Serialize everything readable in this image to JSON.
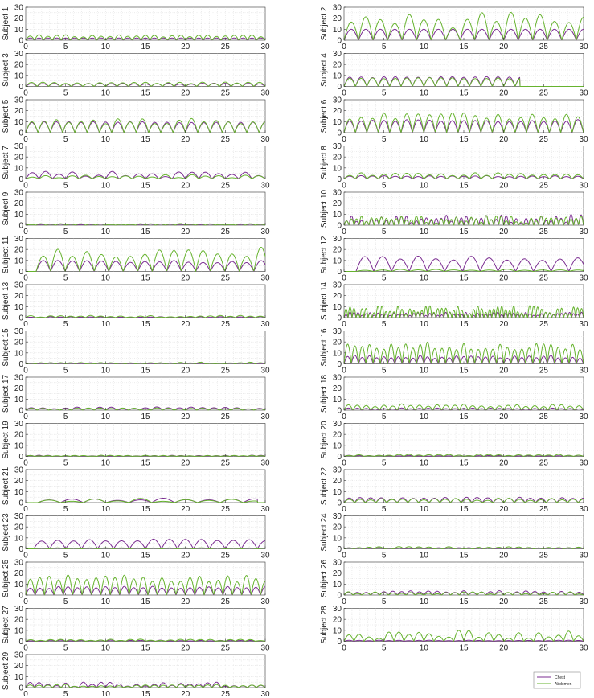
{
  "colors": {
    "chest": "#7b2d91",
    "abdomen": "#66b32e",
    "grid": "#cfcfcf",
    "axis": "#333333"
  },
  "legend": {
    "entries": [
      "Chest",
      "Abdomen"
    ],
    "placement": "bottom-right"
  },
  "chart_data": [
    {
      "type": "line",
      "ylabel": "Subject 1",
      "xlim": [
        0,
        30
      ],
      "ylim": [
        0,
        30
      ],
      "xticks": [
        0,
        5,
        10,
        15,
        20,
        25,
        30
      ],
      "yticks": [
        0,
        10,
        20,
        30
      ],
      "grid": true,
      "series": [
        {
          "name": "Chest",
          "rate": 0.9,
          "amp": [
            2,
            2
          ]
        },
        {
          "name": "Abdomen",
          "rate": 0.9,
          "amp": [
            3,
            5
          ]
        }
      ]
    },
    {
      "type": "line",
      "ylabel": "Subject 2",
      "xlim": [
        0,
        30
      ],
      "ylim": [
        0,
        30
      ],
      "xticks": [
        0,
        5,
        10,
        15,
        20,
        25,
        30
      ],
      "yticks": [
        0,
        10,
        20,
        30
      ],
      "grid": true,
      "series": [
        {
          "name": "Chest",
          "rate": 0.55,
          "amp": [
            10,
            10
          ],
          "end": 30
        },
        {
          "name": "Abdomen",
          "rate": 0.55,
          "amp": [
            10,
            28
          ],
          "end": 30
        }
      ]
    },
    {
      "type": "line",
      "ylabel": "Subject 3",
      "xlim": [
        0,
        30
      ],
      "ylim": [
        0,
        30
      ],
      "xticks": [
        0,
        5,
        10,
        15,
        20,
        25,
        30
      ],
      "yticks": [
        0,
        10,
        20,
        30
      ],
      "grid": true,
      "series": [
        {
          "name": "Chest",
          "rate": 0.7,
          "amp": [
            2,
            3
          ]
        },
        {
          "name": "Abdomen",
          "rate": 0.7,
          "amp": [
            2,
            4
          ]
        }
      ]
    },
    {
      "type": "line",
      "ylabel": "Subject 4",
      "xlim": [
        0,
        30
      ],
      "ylim": [
        0,
        30
      ],
      "xticks": [
        0,
        5,
        10,
        15,
        20,
        25,
        30
      ],
      "yticks": [
        0,
        10,
        20,
        30
      ],
      "grid": true,
      "series": [
        {
          "name": "Chest",
          "rate": 0.7,
          "amp": [
            8,
            9
          ],
          "end": 22
        },
        {
          "name": "Abdomen",
          "rate": 0.7,
          "amp": [
            7,
            8
          ],
          "end": 22
        }
      ]
    },
    {
      "type": "line",
      "ylabel": "Subject 5",
      "xlim": [
        0,
        30
      ],
      "ylim": [
        0,
        30
      ],
      "xticks": [
        0,
        5,
        10,
        15,
        20,
        25,
        30
      ],
      "yticks": [
        0,
        10,
        20,
        30
      ],
      "grid": true,
      "series": [
        {
          "name": "Chest",
          "rate": 0.65,
          "amp": [
            9,
            10
          ]
        },
        {
          "name": "Abdomen",
          "rate": 0.65,
          "amp": [
            8,
            13
          ]
        }
      ]
    },
    {
      "type": "line",
      "ylabel": "Subject 6",
      "xlim": [
        0,
        30
      ],
      "ylim": [
        0,
        30
      ],
      "xticks": [
        0,
        5,
        10,
        15,
        20,
        25,
        30
      ],
      "yticks": [
        0,
        10,
        20,
        30
      ],
      "grid": true,
      "series": [
        {
          "name": "Chest",
          "rate": 0.7,
          "amp": [
            10,
            12
          ]
        },
        {
          "name": "Abdomen",
          "rate": 0.7,
          "amp": [
            12,
            18
          ]
        }
      ]
    },
    {
      "type": "line",
      "ylabel": "Subject 7",
      "xlim": [
        0,
        30
      ],
      "ylim": [
        0,
        30
      ],
      "xticks": [
        0,
        5,
        10,
        15,
        20,
        25,
        30
      ],
      "yticks": [
        0,
        10,
        20,
        30
      ],
      "grid": true,
      "series": [
        {
          "name": "Chest",
          "rate": 0.6,
          "amp": [
            2,
            7
          ]
        },
        {
          "name": "Abdomen",
          "rate": 0.6,
          "amp": [
            1,
            4
          ]
        }
      ]
    },
    {
      "type": "line",
      "ylabel": "Subject 8",
      "xlim": [
        0,
        30
      ],
      "ylim": [
        0,
        30
      ],
      "xticks": [
        0,
        5,
        10,
        15,
        20,
        25,
        30
      ],
      "yticks": [
        0,
        10,
        20,
        30
      ],
      "grid": true,
      "series": [
        {
          "name": "Chest",
          "rate": 0.7,
          "amp": [
            2,
            3
          ]
        },
        {
          "name": "Abdomen",
          "rate": 0.7,
          "amp": [
            3,
            6
          ]
        }
      ]
    },
    {
      "type": "line",
      "ylabel": "Subject 9",
      "xlim": [
        0,
        30
      ],
      "ylim": [
        0,
        30
      ],
      "xticks": [
        0,
        5,
        10,
        15,
        20,
        25,
        30
      ],
      "yticks": [
        0,
        10,
        20,
        30
      ],
      "grid": true,
      "series": [
        {
          "name": "Chest",
          "rate": 0.8,
          "amp": [
            0.5,
            1
          ]
        },
        {
          "name": "Abdomen",
          "rate": 0.8,
          "amp": [
            0.5,
            1.5
          ]
        }
      ]
    },
    {
      "type": "line",
      "ylabel": "Subject 10",
      "xlim": [
        0,
        30
      ],
      "ylim": [
        0,
        30
      ],
      "xticks": [
        0,
        5,
        10,
        15,
        20,
        25,
        30
      ],
      "yticks": [
        0,
        10,
        20,
        30
      ],
      "grid": true,
      "series": [
        {
          "name": "Chest",
          "rate": 1.6,
          "amp": [
            2,
            10
          ]
        },
        {
          "name": "Abdomen",
          "rate": 1.6,
          "amp": [
            2,
            9
          ]
        }
      ]
    },
    {
      "type": "line",
      "ylabel": "Subject 11",
      "xlim": [
        0,
        30
      ],
      "ylim": [
        0,
        30
      ],
      "xticks": [
        0,
        5,
        10,
        15,
        20,
        25,
        30
      ],
      "yticks": [
        0,
        10,
        20,
        30
      ],
      "grid": true,
      "series": [
        {
          "name": "Chest",
          "rate": 0.55,
          "amp": [
            8,
            10
          ],
          "start": 1.3
        },
        {
          "name": "Abdomen",
          "rate": 0.55,
          "amp": [
            12,
            22
          ],
          "start": 1.3
        }
      ]
    },
    {
      "type": "line",
      "ylabel": "Subject 12",
      "xlim": [
        0,
        30
      ],
      "ylim": [
        0,
        30
      ],
      "xticks": [
        0,
        5,
        10,
        15,
        20,
        25,
        30
      ],
      "yticks": [
        0,
        10,
        20,
        30
      ],
      "grid": true,
      "series": [
        {
          "name": "Chest",
          "rate": 0.45,
          "amp": [
            10,
            14
          ],
          "start": 1.5
        },
        {
          "name": "Abdomen",
          "rate": 0.45,
          "amp": [
            1,
            2
          ],
          "start": 1.5
        }
      ]
    },
    {
      "type": "line",
      "ylabel": "Subject 13",
      "xlim": [
        0,
        30
      ],
      "ylim": [
        0,
        30
      ],
      "xticks": [
        0,
        5,
        10,
        15,
        20,
        25,
        30
      ],
      "yticks": [
        0,
        10,
        20,
        30
      ],
      "grid": true,
      "series": [
        {
          "name": "Chest",
          "rate": 0.8,
          "amp": [
            0.3,
            1
          ]
        },
        {
          "name": "Abdomen",
          "rate": 0.8,
          "amp": [
            0.5,
            2
          ]
        }
      ]
    },
    {
      "type": "line",
      "ylabel": "Subject 14",
      "xlim": [
        0,
        30
      ],
      "ylim": [
        0,
        30
      ],
      "xticks": [
        0,
        5,
        10,
        15,
        20,
        25,
        30
      ],
      "yticks": [
        0,
        10,
        20,
        30
      ],
      "grid": true,
      "series": [
        {
          "name": "Chest",
          "rate": 2.0,
          "amp": [
            2,
            5
          ]
        },
        {
          "name": "Abdomen",
          "rate": 2.0,
          "amp": [
            3,
            11
          ]
        }
      ]
    },
    {
      "type": "line",
      "ylabel": "Subject 15",
      "xlim": [
        0,
        30
      ],
      "ylim": [
        0,
        30
      ],
      "xticks": [
        0,
        5,
        10,
        15,
        20,
        25,
        30
      ],
      "yticks": [
        0,
        10,
        20,
        30
      ],
      "grid": true,
      "series": [
        {
          "name": "Chest",
          "rate": 0.8,
          "amp": [
            0.5,
            1
          ]
        },
        {
          "name": "Abdomen",
          "rate": 0.8,
          "amp": [
            0.5,
            1.5
          ]
        }
      ]
    },
    {
      "type": "line",
      "ylabel": "Subject 16",
      "xlim": [
        0,
        30
      ],
      "ylim": [
        0,
        30
      ],
      "xticks": [
        0,
        5,
        10,
        15,
        20,
        25,
        30
      ],
      "yticks": [
        0,
        10,
        20,
        30
      ],
      "grid": true,
      "series": [
        {
          "name": "Chest",
          "rate": 1.1,
          "amp": [
            5,
            8
          ]
        },
        {
          "name": "Abdomen",
          "rate": 1.1,
          "amp": [
            13,
            20
          ]
        }
      ]
    },
    {
      "type": "line",
      "ylabel": "Subject 17",
      "xlim": [
        0,
        30
      ],
      "ylim": [
        0,
        30
      ],
      "xticks": [
        0,
        5,
        10,
        15,
        20,
        25,
        30
      ],
      "yticks": [
        0,
        10,
        20,
        30
      ],
      "grid": true,
      "series": [
        {
          "name": "Chest",
          "rate": 0.7,
          "amp": [
            1,
            3
          ]
        },
        {
          "name": "Abdomen",
          "rate": 0.7,
          "amp": [
            1,
            2
          ]
        }
      ]
    },
    {
      "type": "line",
      "ylabel": "Subject 18",
      "xlim": [
        0,
        30
      ],
      "ylim": [
        0,
        30
      ],
      "xticks": [
        0,
        5,
        10,
        15,
        20,
        25,
        30
      ],
      "yticks": [
        0,
        10,
        20,
        30
      ],
      "grid": true,
      "series": [
        {
          "name": "Chest",
          "rate": 0.9,
          "amp": [
            1,
            2
          ]
        },
        {
          "name": "Abdomen",
          "rate": 0.9,
          "amp": [
            3,
            6
          ]
        }
      ]
    },
    {
      "type": "line",
      "ylabel": "Subject 19",
      "xlim": [
        0,
        30
      ],
      "ylim": [
        0,
        30
      ],
      "xticks": [
        0,
        5,
        10,
        15,
        20,
        25,
        30
      ],
      "yticks": [
        0,
        10,
        20,
        30
      ],
      "grid": true,
      "series": [
        {
          "name": "Chest",
          "rate": 0.9,
          "amp": [
            0.3,
            1
          ]
        },
        {
          "name": "Abdomen",
          "rate": 0.9,
          "amp": [
            0.3,
            1
          ]
        }
      ]
    },
    {
      "type": "line",
      "ylabel": "Subject 20",
      "xlim": [
        0,
        30
      ],
      "ylim": [
        0,
        30
      ],
      "xticks": [
        0,
        5,
        10,
        15,
        20,
        25,
        30
      ],
      "yticks": [
        0,
        10,
        20,
        30
      ],
      "grid": true,
      "series": [
        {
          "name": "Chest",
          "rate": 0.8,
          "amp": [
            0.3,
            1
          ]
        },
        {
          "name": "Abdomen",
          "rate": 0.8,
          "amp": [
            0.5,
            2
          ]
        }
      ]
    },
    {
      "type": "line",
      "ylabel": "Subject 21",
      "xlim": [
        0,
        30
      ],
      "ylim": [
        0,
        30
      ],
      "xticks": [
        0,
        5,
        10,
        15,
        20,
        25,
        30
      ],
      "yticks": [
        0,
        10,
        20,
        30
      ],
      "grid": true,
      "series": [
        {
          "name": "Chest",
          "rate": 0.35,
          "amp": [
            2,
            4
          ],
          "start": 1.5,
          "end": 29
        },
        {
          "name": "Abdomen",
          "rate": 0.35,
          "amp": [
            1,
            4
          ],
          "start": 1.5,
          "end": 29
        }
      ]
    },
    {
      "type": "line",
      "ylabel": "Subject 22",
      "xlim": [
        0,
        30
      ],
      "ylim": [
        0,
        30
      ],
      "xticks": [
        0,
        5,
        10,
        15,
        20,
        25,
        30
      ],
      "yticks": [
        0,
        10,
        20,
        30
      ],
      "grid": true,
      "series": [
        {
          "name": "Chest",
          "rate": 0.75,
          "amp": [
            3,
            5
          ]
        },
        {
          "name": "Abdomen",
          "rate": 0.75,
          "amp": [
            2,
            4
          ]
        }
      ]
    },
    {
      "type": "line",
      "ylabel": "Subject 23",
      "xlim": [
        0,
        30
      ],
      "ylim": [
        0,
        30
      ],
      "xticks": [
        0,
        5,
        10,
        15,
        20,
        25,
        30
      ],
      "yticks": [
        0,
        10,
        20,
        30
      ],
      "grid": true,
      "series": [
        {
          "name": "Chest",
          "rate": 0.5,
          "amp": [
            7,
            9
          ],
          "start": 1
        },
        {
          "name": "Abdomen",
          "rate": 0.5,
          "amp": [
            0.5,
            1
          ],
          "start": 1
        }
      ]
    },
    {
      "type": "line",
      "ylabel": "Subject 24",
      "xlim": [
        0,
        30
      ],
      "ylim": [
        0,
        30
      ],
      "xticks": [
        0,
        5,
        10,
        15,
        20,
        25,
        30
      ],
      "yticks": [
        0,
        10,
        20,
        30
      ],
      "grid": true,
      "series": [
        {
          "name": "Chest",
          "rate": 0.8,
          "amp": [
            0.5,
            1
          ]
        },
        {
          "name": "Abdomen",
          "rate": 0.8,
          "amp": [
            0.5,
            2
          ]
        }
      ]
    },
    {
      "type": "line",
      "ylabel": "Subject 25",
      "xlim": [
        0,
        30
      ],
      "ylim": [
        0,
        30
      ],
      "xticks": [
        0,
        5,
        10,
        15,
        20,
        25,
        30
      ],
      "yticks": [
        0,
        10,
        20,
        30
      ],
      "grid": true,
      "series": [
        {
          "name": "Chest",
          "rate": 0.85,
          "amp": [
            6,
            8
          ]
        },
        {
          "name": "Abdomen",
          "rate": 0.85,
          "amp": [
            12,
            19
          ]
        }
      ]
    },
    {
      "type": "line",
      "ylabel": "Subject 26",
      "xlim": [
        0,
        30
      ],
      "ylim": [
        0,
        30
      ],
      "xticks": [
        0,
        5,
        10,
        15,
        20,
        25,
        30
      ],
      "yticks": [
        0,
        10,
        20,
        30
      ],
      "grid": true,
      "series": [
        {
          "name": "Chest",
          "rate": 0.9,
          "amp": [
            2,
            4
          ]
        },
        {
          "name": "Abdomen",
          "rate": 0.9,
          "amp": [
            1,
            3
          ]
        }
      ]
    },
    {
      "type": "line",
      "ylabel": "Subject 27",
      "xlim": [
        0,
        30
      ],
      "ylim": [
        0,
        30
      ],
      "xticks": [
        0,
        5,
        10,
        15,
        20,
        25,
        30
      ],
      "yticks": [
        0,
        10,
        20,
        30
      ],
      "grid": true,
      "series": [
        {
          "name": "Chest",
          "rate": 0.8,
          "amp": [
            0.3,
            1
          ]
        },
        {
          "name": "Abdomen",
          "rate": 0.8,
          "amp": [
            0.5,
            2
          ]
        }
      ]
    },
    {
      "type": "line",
      "ylabel": "Subject 28",
      "xlim": [
        0,
        30
      ],
      "ylim": [
        0,
        30
      ],
      "xticks": [
        0,
        5,
        10,
        15,
        20,
        25,
        30
      ],
      "yticks": [
        0,
        10,
        20,
        30
      ],
      "grid": true,
      "series": [
        {
          "name": "Chest",
          "rate": 0.8,
          "amp": [
            0.5,
            1
          ]
        },
        {
          "name": "Abdomen",
          "rate": 0.8,
          "amp": [
            2,
            10
          ]
        }
      ]
    },
    {
      "type": "line",
      "ylabel": "Subject 29",
      "xlim": [
        0,
        30
      ],
      "ylim": [
        0,
        30
      ],
      "xticks": [
        0,
        5,
        10,
        15,
        20,
        25,
        30
      ],
      "yticks": [
        0,
        10,
        20,
        30
      ],
      "grid": true,
      "series": [
        {
          "name": "Chest",
          "rate": 0.9,
          "amp": [
            1,
            5
          ]
        },
        {
          "name": "Abdomen",
          "rate": 0.9,
          "amp": [
            1,
            3
          ]
        }
      ]
    }
  ]
}
